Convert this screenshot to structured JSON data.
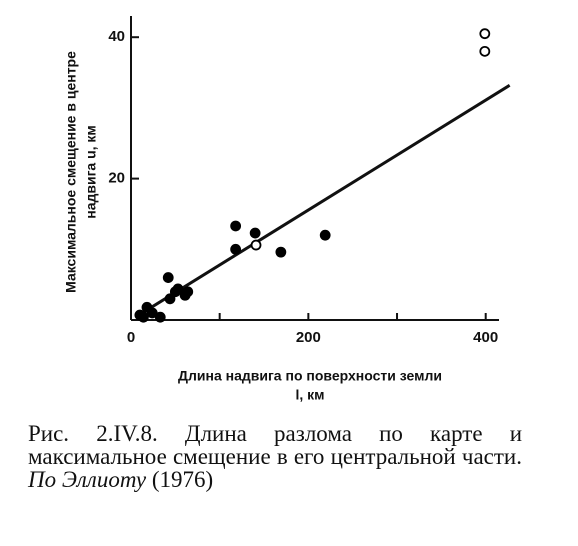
{
  "chart_data": {
    "type": "scatter",
    "ylabel": [
      "Максимальное смещение в центре",
      "надвига u, км"
    ],
    "xlabel": [
      "Длина надвига по поверхности земли",
      "l, км"
    ],
    "xlim": [
      0,
      415
    ],
    "ylim": [
      0,
      43
    ],
    "xticks": [
      0,
      200,
      400
    ],
    "xminorticks": [
      100,
      300
    ],
    "yticks": [
      20,
      40
    ],
    "series": [
      {
        "name": "filled",
        "color": "#000000",
        "filled": true,
        "x": [
          10,
          18,
          14,
          24,
          33,
          42,
          44,
          50,
          53,
          61,
          64,
          118,
          118,
          140,
          169,
          219
        ],
        "y": [
          0.7,
          1.8,
          0.4,
          1,
          0.4,
          6,
          3,
          4,
          4.4,
          3.5,
          4,
          13.3,
          10,
          12.3,
          9.6,
          12
        ]
      },
      {
        "name": "open",
        "color": "#000000",
        "filled": false,
        "x": [
          141,
          399,
          399
        ],
        "y": [
          10.6,
          40.5,
          38
        ]
      }
    ],
    "fit_line": {
      "x": [
        5,
        427
      ],
      "y": [
        0.4,
        33.2
      ]
    }
  },
  "caption": {
    "text": "Рис. 2.IV.8. Длина разлома по карте и максимальное смещение в его центральной части.",
    "source": "По Эллиоту",
    "year": "(1976)"
  }
}
